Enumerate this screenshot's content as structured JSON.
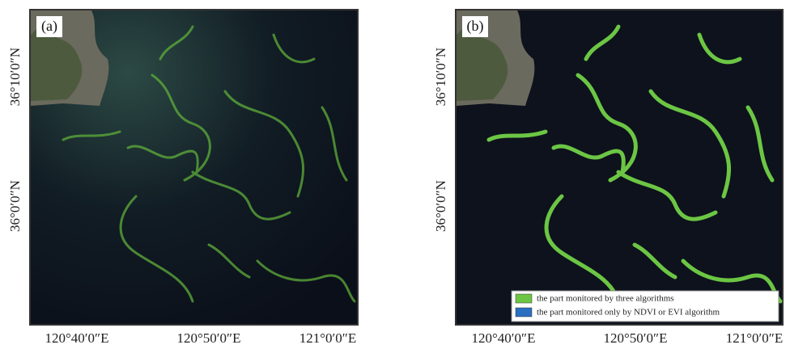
{
  "panels": [
    {
      "label": "(a)",
      "x_labels": [
        "120°40′0″E",
        "120°50′0″E",
        "121°0′0″E"
      ],
      "y_labels": [
        "36°10′0″N",
        "36°0′0″N"
      ]
    },
    {
      "label": "(b)",
      "x_labels": [
        "120°40′0″E",
        "120°50′0″E",
        "121°0′0″E"
      ],
      "y_labels": [
        "36°10′0″N",
        "36°0′0″N"
      ],
      "legend": [
        {
          "label": "the part monitored by three algorithms",
          "color": "#6cc644"
        },
        {
          "label": "the part monitored only by NDVI or EVI algorithm",
          "color": "#2a6fc0"
        }
      ]
    }
  ]
}
